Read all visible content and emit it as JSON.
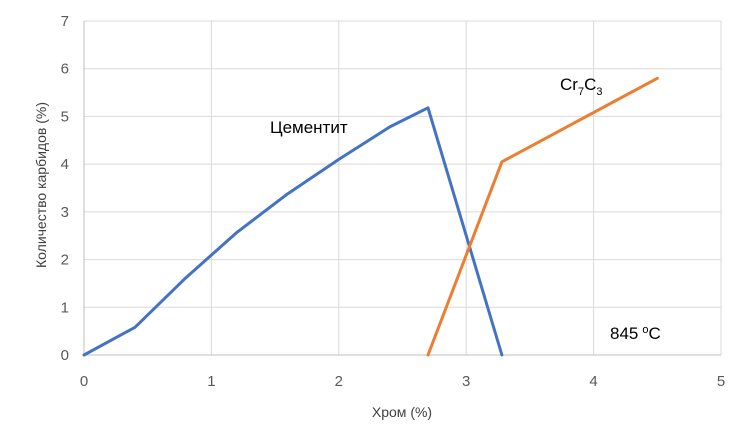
{
  "chart_data": {
    "type": "line",
    "xlabel": "Хром (%)",
    "ylabel": "Количество карбидов (%)",
    "xlim": [
      0,
      5
    ],
    "ylim": [
      0,
      7
    ],
    "xticks": [
      "0",
      "1",
      "2",
      "3",
      "4",
      "5"
    ],
    "yticks": [
      "0",
      "1",
      "2",
      "3",
      "4",
      "5",
      "6",
      "7"
    ],
    "grid": true,
    "series": [
      {
        "name": "Цементит",
        "color": "#4472C4",
        "points": [
          [
            0,
            0
          ],
          [
            0.4,
            0.58
          ],
          [
            0.8,
            1.62
          ],
          [
            1.2,
            2.57
          ],
          [
            1.6,
            3.38
          ],
          [
            2.0,
            4.1
          ],
          [
            2.4,
            4.78
          ],
          [
            2.7,
            5.18
          ],
          [
            3.28,
            0
          ]
        ]
      },
      {
        "name": "Cr7C3",
        "color": "#ED7D31",
        "points": [
          [
            2.7,
            0
          ],
          [
            3.28,
            4.05
          ],
          [
            4.5,
            5.8
          ]
        ]
      }
    ],
    "annotations": {
      "cementite": "Цементит",
      "cr_base": "Cr",
      "cr_sub1": "7",
      "cr_c": "C",
      "cr_sub2": "3",
      "temp_value": "845",
      "temp_deg": "o",
      "temp_unit": "C"
    }
  }
}
